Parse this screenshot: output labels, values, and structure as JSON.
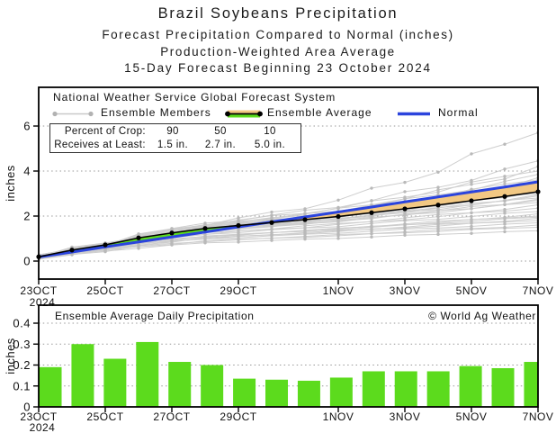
{
  "title": {
    "line1": "Brazil Soybeans Precipitation",
    "line2": "Forecast Precipitation Compared to Normal (inches)",
    "line3": "Production-Weighted Area Average",
    "line4": "15-Day Forecast Beginning 23 October 2024"
  },
  "legend": {
    "header": "National Weather Service Global Forecast System",
    "items": [
      {
        "label": "Ensemble Members",
        "icon": "gray-line-with-end-dots"
      },
      {
        "label": "Ensemble Average",
        "icon": "black-dotted-line-with-orange-green-band"
      },
      {
        "label": "Normal",
        "icon": "blue-line"
      }
    ]
  },
  "info_box": {
    "row1_label": "Percent of Crop:",
    "row2_label": "Receives at Least:",
    "columns": [
      {
        "percent": "90",
        "amount": "1.5 in."
      },
      {
        "percent": "50",
        "amount": "2.7 in."
      },
      {
        "percent": "10",
        "amount": "5.0 in."
      }
    ]
  },
  "colors": {
    "ensemble_average_line": "#000000",
    "normal_line": "#2b44dd",
    "above_normal_band": "#5cdb1d",
    "below_normal_band": "#f2c883",
    "bar_fill": "#5cdb1d",
    "member_line": "#c9c9c9",
    "member_dot": "#b2b2b2",
    "grid": "#999999",
    "axis": "#000000"
  },
  "chart_data": [
    {
      "type": "line",
      "title": "",
      "ylabel": "inches",
      "ylim": [
        0,
        6
      ],
      "y_ticks": [
        0,
        2,
        4,
        6
      ],
      "grid": "horizontal-dotted",
      "legend_position": "top-left-inside",
      "x_tick_labels": [
        "23OCT",
        "25OCT",
        "27OCT",
        "29OCT",
        "1NOV",
        "3NOV",
        "5NOV",
        "7NOV"
      ],
      "x_tick_days": [
        0,
        2,
        4,
        6,
        9,
        11,
        13,
        15
      ],
      "start_year_label": "2024",
      "n_points": 16,
      "series": [
        {
          "name": "Ensemble Average",
          "values": [
            0.19,
            0.49,
            0.72,
            1.03,
            1.25,
            1.45,
            1.58,
            1.71,
            1.84,
            1.98,
            2.15,
            2.32,
            2.49,
            2.68,
            2.87,
            3.08
          ]
        },
        {
          "name": "Normal",
          "values": [
            0.18,
            0.4,
            0.63,
            0.85,
            1.07,
            1.29,
            1.52,
            1.74,
            1.96,
            2.18,
            2.4,
            2.63,
            2.85,
            3.07,
            3.29,
            3.52
          ]
        }
      ],
      "ensemble_members": {
        "name": "Ensemble Members",
        "count": 31,
        "final_values": [
          1.35,
          1.5,
          1.6,
          1.7,
          1.8,
          1.9,
          1.95,
          2.0,
          2.1,
          2.2,
          2.35,
          2.5,
          2.6,
          2.7,
          2.75,
          2.8,
          2.9,
          2.95,
          3.0,
          3.1,
          3.2,
          3.3,
          3.4,
          3.5,
          3.6,
          3.7,
          3.85,
          4.0,
          4.2,
          4.45,
          5.7
        ]
      },
      "bands": {
        "above_normal": "green fill where ensemble average exceeds normal",
        "below_normal": "orange fill where ensemble average is below normal"
      }
    },
    {
      "type": "bar",
      "title": "Ensemble Average Daily Precipitation",
      "watermark": "© World Ag Weather",
      "ylabel": "inches",
      "ylim": [
        0,
        0.45
      ],
      "y_ticks": [
        0,
        0.1,
        0.2,
        0.3,
        0.4
      ],
      "grid": "horizontal-dotted",
      "x_tick_labels": [
        "23OCT",
        "25OCT",
        "27OCT",
        "29OCT",
        "1NOV",
        "3NOV",
        "5NOV",
        "7NOV"
      ],
      "x_tick_days": [
        0,
        2,
        4,
        6,
        9,
        11,
        13,
        15
      ],
      "start_year_label": "2024",
      "values": [
        0.19,
        0.3,
        0.23,
        0.31,
        0.215,
        0.2,
        0.135,
        0.13,
        0.125,
        0.14,
        0.17,
        0.17,
        0.17,
        0.195,
        0.185,
        0.215
      ]
    }
  ]
}
